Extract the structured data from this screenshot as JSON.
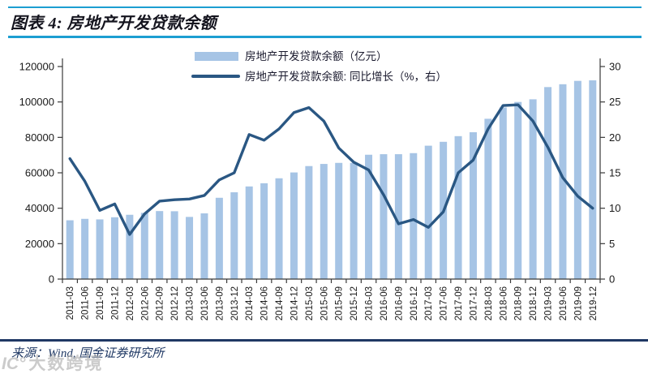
{
  "header": {
    "title": "图表 4: 房地产开发贷款余额"
  },
  "footer": {
    "source": "来源：Wind, 国金证券研究所"
  },
  "watermark": {
    "logo": "IC°",
    "text": "大数跨境"
  },
  "chart_data": {
    "type": "bar+line",
    "title": "房地产开发贷款余额",
    "grid": false,
    "legend_position": "top-center",
    "categories": [
      "2011-03",
      "2011-06",
      "2011-09",
      "2011-12",
      "2012-03",
      "2012-06",
      "2012-09",
      "2012-12",
      "2013-03",
      "2013-06",
      "2013-09",
      "2013-12",
      "2014-03",
      "2014-06",
      "2014-09",
      "2014-12",
      "2015-03",
      "2015-06",
      "2015-09",
      "2015-12",
      "2016-03",
      "2016-06",
      "2016-09",
      "2016-12",
      "2017-03",
      "2017-06",
      "2017-09",
      "2017-12",
      "2018-03",
      "2018-06",
      "2018-09",
      "2018-12",
      "2019-03",
      "2019-06",
      "2019-09",
      "2019-12"
    ],
    "series": [
      {
        "name": "房地产开发贷款余额（亿元）",
        "type": "bar",
        "axis": "left",
        "color": "#A6C4E5",
        "values": [
          33200,
          34000,
          33700,
          34900,
          36300,
          37400,
          38400,
          38300,
          35100,
          37100,
          45900,
          49000,
          52300,
          54100,
          56900,
          60200,
          63800,
          65000,
          65600,
          65600,
          70200,
          70500,
          70500,
          71100,
          75300,
          77500,
          80700,
          82900,
          90500,
          96900,
          100000,
          101500,
          108400,
          110000,
          111900,
          112200
        ]
      },
      {
        "name": "房地产开发贷款余额: 同比增长（%，右）",
        "type": "line",
        "axis": "right",
        "color": "#2A5783",
        "values": [
          17.0,
          13.8,
          9.7,
          10.6,
          6.3,
          9.2,
          11.0,
          11.2,
          11.3,
          11.8,
          14.0,
          15.0,
          20.4,
          19.6,
          21.2,
          23.5,
          24.2,
          22.3,
          18.5,
          16.5,
          15.4,
          11.9,
          7.8,
          8.4,
          7.3,
          9.5,
          15.0,
          16.8,
          21.2,
          24.5,
          24.6,
          22.3,
          18.6,
          14.3,
          11.7,
          10.0
        ]
      }
    ],
    "left_axis": {
      "min": 0,
      "max": 120000,
      "ticks": [
        0,
        20000,
        40000,
        60000,
        80000,
        100000,
        120000
      ]
    },
    "right_axis": {
      "min": 0,
      "max": 30,
      "ticks": [
        0,
        5,
        10,
        15,
        20,
        25,
        30
      ]
    }
  }
}
